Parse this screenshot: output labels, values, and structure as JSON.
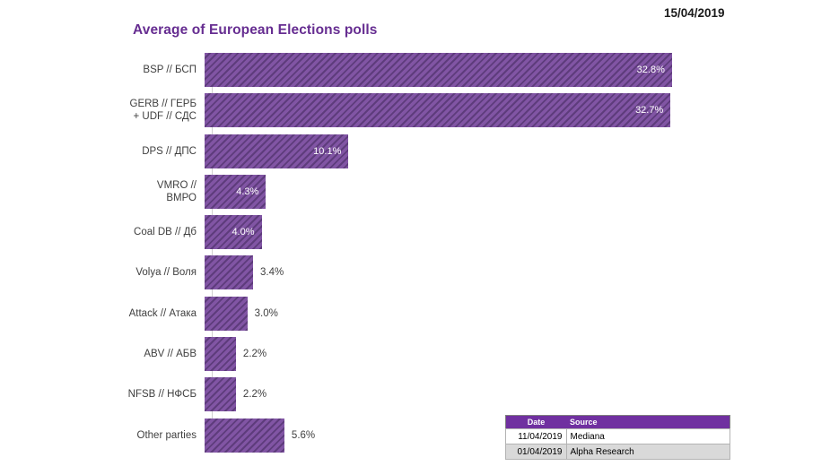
{
  "header": {
    "date": "15/04/2019"
  },
  "chart_data": {
    "type": "bar",
    "orientation": "horizontal",
    "title": "Average of European Elections polls",
    "categories": [
      "BSP // БСП",
      "GERB // ГЕРБ + UDF // СДС",
      "DPS // ДПС",
      "VMRO // ВМРО",
      "Coal DB // Дб",
      "Volya // Воля",
      "Attack // Атака",
      "ABV // АБВ",
      "NFSB // НФСБ",
      "Other parties"
    ],
    "values": [
      32.8,
      32.7,
      10.1,
      4.3,
      4.0,
      3.4,
      3.0,
      2.2,
      2.2,
      5.6
    ],
    "xlim": [
      0,
      43
    ],
    "grid": false,
    "legend": "none",
    "items": [
      {
        "label_lines": [
          "BSP // БСП"
        ],
        "value": 32.8,
        "value_label": "32.8%",
        "value_placement": "inside"
      },
      {
        "label_lines": [
          "GERB // ГЕРБ",
          "+ UDF // СДС"
        ],
        "value": 32.7,
        "value_label": "32.7%",
        "value_placement": "inside"
      },
      {
        "label_lines": [
          "DPS // ДПС"
        ],
        "value": 10.1,
        "value_label": "10.1%",
        "value_placement": "inside"
      },
      {
        "label_lines": [
          "VMRO //",
          "ВМРО"
        ],
        "value": 4.3,
        "value_label": "4.3%",
        "value_placement": "inside"
      },
      {
        "label_lines": [
          "Coal DB // Дб"
        ],
        "value": 4.0,
        "value_label": "4.0%",
        "value_placement": "inside"
      },
      {
        "label_lines": [
          "Volya // Воля"
        ],
        "value": 3.4,
        "value_label": "3.4%",
        "value_placement": "outside"
      },
      {
        "label_lines": [
          "Attack // Атака"
        ],
        "value": 3.0,
        "value_label": "3.0%",
        "value_placement": "outside"
      },
      {
        "label_lines": [
          "ABV // АБВ"
        ],
        "value": 2.2,
        "value_label": "2.2%",
        "value_placement": "outside"
      },
      {
        "label_lines": [
          "NFSB // НФСБ"
        ],
        "value": 2.2,
        "value_label": "2.2%",
        "value_placement": "outside"
      },
      {
        "label_lines": [
          "Other parties"
        ],
        "value": 5.6,
        "value_label": "5.6%",
        "value_placement": "outside"
      }
    ]
  },
  "source_table": {
    "columns": [
      "Date",
      "Source"
    ],
    "rows": [
      {
        "date": "11/04/2019",
        "source": "Mediana"
      },
      {
        "date": "01/04/2019",
        "source": "Alpha Research"
      }
    ]
  },
  "colors": {
    "bar_fill": "#8155a4",
    "bar_hatch": "#5e3c7c",
    "title": "#662d91",
    "table_header_bg": "#7030a0",
    "table_row_alt_bg": "#d9d9d9",
    "axis_line": "#cfcfcf",
    "label_text": "#3f3f3f",
    "value_inside_text": "#ffffff",
    "value_outside_text": "#404040"
  }
}
